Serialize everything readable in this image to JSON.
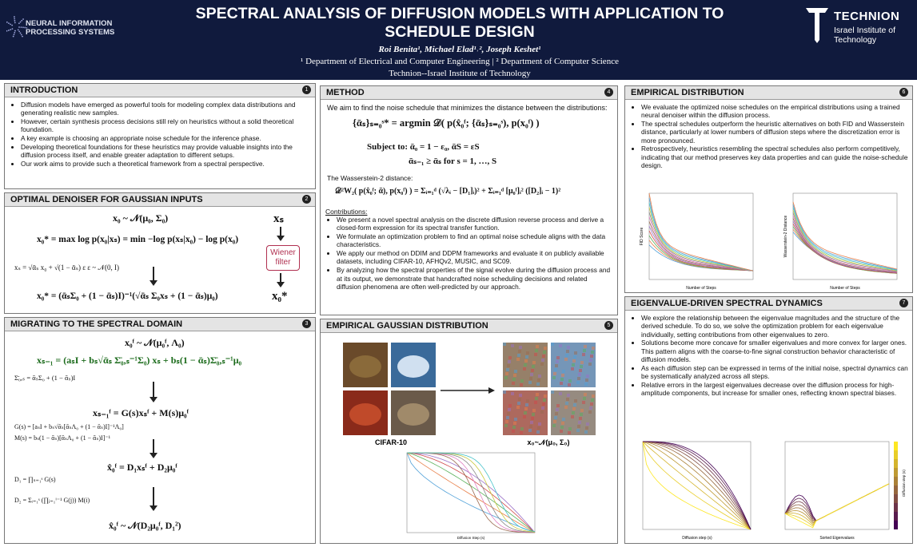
{
  "header": {
    "conference": "NEURAL INFORMATION PROCESSING SYSTEMS",
    "title": "SPECTRAL ANALYSIS OF DIFFUSION MODELS WITH APPLICATION TO SCHEDULE DESIGN",
    "authors": "Roi Benita¹,  Michael Elad¹˒²,  Joseph Keshet¹",
    "affiliations": "¹ Department of Electrical and Computer Engineering | ² Department of Computer Science",
    "institution": "Technion--Israel Institute of Technology",
    "logo_name": "TECHNION",
    "logo_subtitle": "Israel Institute of Technology"
  },
  "sections": [
    {
      "title": "INTRODUCTION",
      "number": "1",
      "bullets": [
        "Diffusion models have emerged as powerful tools for modeling complex data distributions and generating realistic new samples.",
        "However, certain synthesis process decisions still rely on heuristics without a solid theoretical foundation.",
        "A key example is choosing an appropriate noise schedule for the inference phase.",
        "Developing theoretical foundations for these heuristics may provide valuable insights into the diffusion process itself, and enable greater adaptation to different setups.",
        "Our work aims to provide such a theoretical framework from a spectral perspective."
      ]
    },
    {
      "title": "OPTIMAL DENOISER FOR GAUSSIAN INPUTS",
      "number": "2",
      "equations": [
        "x₀ ~ 𝒩(μ₀, Σ₀)",
        "x₀* = max log p(x₀|xₛ) = min −log p(xₛ|x₀) − log p(x₀)",
        "xₛ = √ᾱₛ x₀ + √(1 − ᾱₛ) ε     ε ~ 𝒩(0, I)",
        "x₀* = (ᾱₛΣ₀ + (1 − ᾱₛ)I)⁻¹(√ᾱₛ Σ₀xₛ + (1 − ᾱₛ)μ₀)"
      ],
      "diagram": {
        "input": "xₛ",
        "filter": "Wiener filter",
        "output": "x₀*"
      }
    },
    {
      "title": "MIGRATING TO THE SPECTRAL DOMAIN",
      "number": "3",
      "equations": [
        "x₀ᶠ ~ 𝒩(μ₀ᶠ, Λ₀)",
        "xₛ₋₁ = (aₛI + bₛ√ᾱₛ Σ̄₀,ₛ⁻¹Σ₀) xₛ + bₛ(1 − ᾱₛ)Σ̄₀,ₛ⁻¹μ₀",
        "Σ̄₀,ₛ = ᾱₛΣ₀ + (1 − ᾱₛ)I",
        "xₛ₋₁ᶠ = G(s)xₛᶠ + M(s)μ₀ᶠ",
        "G(s) = [aₛI + bₛ√ᾱₛ[ᾱₛΛ₀ + (1 − ᾱₛ)I]⁻¹Λ₀]",
        "M(s) = bₛ(1 − ᾱₛ)[ᾱₛΛ₀ + (1 − ᾱₛ)I]⁻¹",
        "x̂₀ᶠ = D₁xₛᶠ + D₂μ₀ᶠ",
        "D₁ = ∏ₛ₌₁ˢ G(s)",
        "D₂ = Σᵢ₌₁ˢ (∏ⱼ₌₁ⁱ⁻¹ G(j)) M(i)",
        "x̂₀ᶠ ~ 𝒩(D₂μ₀ᶠ, D₁²)"
      ]
    },
    {
      "title": "METHOD",
      "number": "4",
      "intro": "We aim to find the noise schedule that minimizes the distance between the distributions:",
      "equations": [
        "{ᾱₛ}ₛ₌₀ˢ* = argmin 𝒟( p(x̂₀ᶠ; {ᾱₛ}ₛ₌₀ˢ), p(x₀ᶠ) )",
        "Subject to:   ᾱ₀ = 1 − ε₀,   ᾱS = εS",
        "ᾱₛ₋₁ ≥ ᾱₛ   for   s = 1, …, S",
        "𝒟²W₂( p(x̂₀ᶠ; ᾱ), p(x₀ᶠ) ) = Σᵢ₌₁ᵈ (√λᵢ − [D₁]ᵢ)² + Σᵢ₌₁ᵈ [μ₀ᶠ]ᵢ² ([D₂]ᵢ − 1)²"
      ],
      "distance_label": "The Wasserstein-2 distance:",
      "contributions_label": "Contributions:",
      "bullets": [
        "We present a novel spectral analysis on the discrete diffusion reverse process and derive a closed-form expression for its spectral transfer function.",
        "We formulate an optimization problem to find an optimal noise schedule aligns with the data characteristics.",
        "We apply our method on DDIM and DDPM frameworks and evaluate it on publicly available datasets, including CIFAR-10, AFHQv2, MUSIC, and SC09.",
        "By analyzing how the spectral properties of the signal evolve during the diffusion process and at its output, we demonstrate that handcrafted noise scheduling decisions and related diffusion phenomena are often well-predicted by our approach."
      ]
    },
    {
      "title": "EMPIRICAL GAUSSIAN DISTRIBUTION",
      "number": "5",
      "left_caption": "CIFAR-10",
      "right_caption": "x₀~𝒩(μ₀, Σ₀)",
      "plot_xlabel": "Diffusion Step (s)"
    },
    {
      "title": "EMPIRICAL DISTRIBUTION",
      "number": "6",
      "bullets": [
        "We evaluate the optimized noise schedules on the empirical distributions using a trained neural denoiser within the diffusion process.",
        "The spectral schedules outperform the heuristic alternatives on both FID and Wasserstein distance, particularly at lower numbers of diffusion steps where the discretization error is more pronounced.",
        "Retrospectively, heuristics resembling the spectral schedules also perform competitively, indicating that our method preserves key data properties and can guide the noise-schedule design."
      ],
      "plot_xlabel": "Number of Steps",
      "left_ylabel": "FID Score",
      "right_ylabel": "Wasserstein-2 Distance"
    },
    {
      "title": "EIGENVALUE-DRIVEN SPECTRAL DYNAMICS",
      "number": "7",
      "bullets": [
        "We explore the relationship between the eigenvalue magnitudes and the structure of the derived schedule. To do so, we solve the optimization problem for each eigenvalue individually, setting contributions from other eigenvalues to zero.",
        "Solutions become more concave for smaller eigenvalues and more convex for larger ones. This pattern aligns with the coarse-to-fine signal construction behavior characteristic of diffusion models.",
        "As each diffusion step can be expressed in terms of the initial noise, spectral dynamics can be systematically analyzed across all steps.",
        "Relative errors in the largest eigenvalues decrease over the diffusion process for high-amplitude components, but increase for smaller ones, reflecting known spectral biases."
      ],
      "left_xlabel": "Diffusion step (s)",
      "right_xlabel": "Sorted Eigenvalues",
      "colorbar_label": "Diffusion step (s)"
    }
  ]
}
